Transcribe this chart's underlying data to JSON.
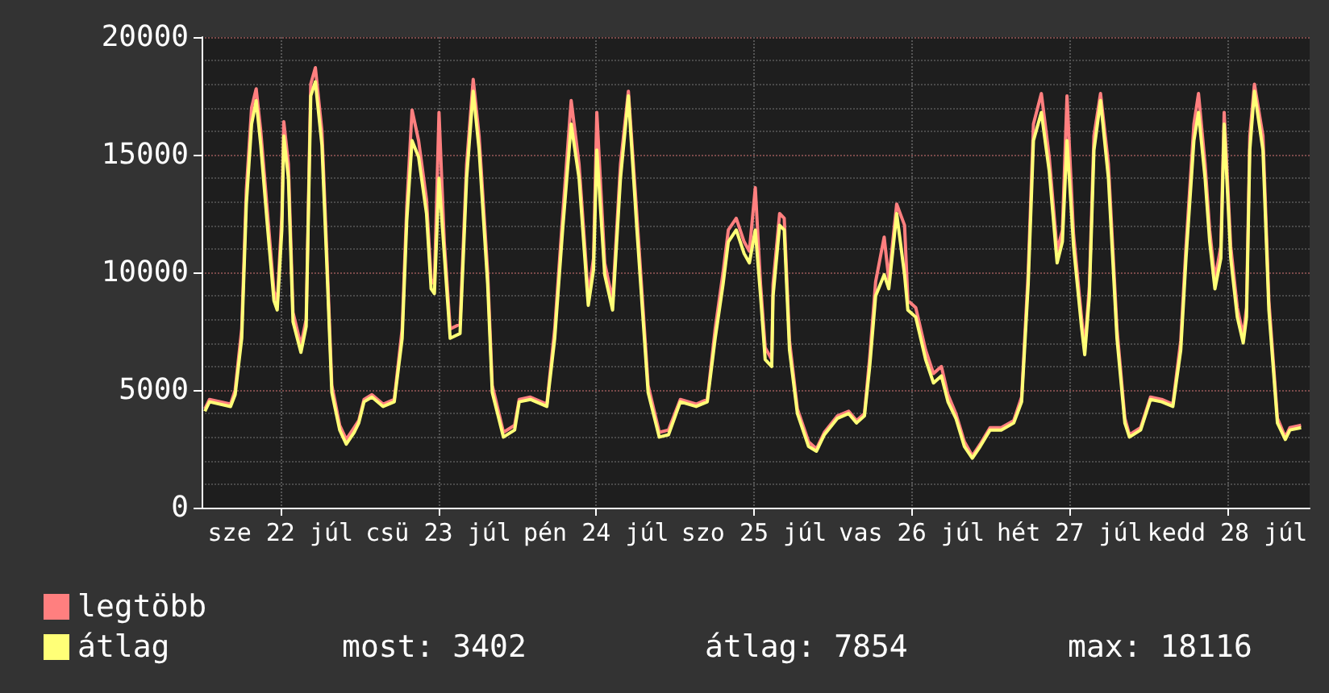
{
  "chart_data": {
    "type": "line",
    "x": [
      "--07-22T00:30",
      "--07-22T01:12",
      "--07-22T04:24",
      "--07-22T05:06",
      "--07-22T06:06",
      "--07-22T06:48",
      "--07-22T07:36",
      "--07-22T08:18",
      "--07-22T09:00",
      "--07-22T10:00",
      "--07-22T11:00",
      "--07-22T11:30",
      "--07-22T12:12",
      "--07-22T12:30",
      "--07-22T13:12",
      "--07-22T13:54",
      "--07-22T15:06",
      "--07-22T15:54",
      "--07-22T16:36",
      "--07-22T17:18",
      "--07-22T18:18",
      "--07-22T19:00",
      "--07-22T19:48",
      "--07-22T21:00",
      "--07-22T22:00",
      "--07-22T23:12",
      "--07-22T23:54",
      "--07-23T00:42",
      "--07-23T01:54",
      "--07-23T03:36",
      "--07-23T05:18",
      "--07-23T06:30",
      "--07-23T07:12",
      "--07-23T08:00",
      "--07-23T09:00",
      "--07-23T10:12",
      "--07-23T10:54",
      "--07-23T11:24",
      "--07-23T12:06",
      "--07-23T12:54",
      "--07-23T13:48",
      "--07-23T15:18",
      "--07-23T16:18",
      "--07-23T17:18",
      "--07-23T18:12",
      "--07-23T19:30",
      "--07-23T20:12",
      "--07-23T21:54",
      "--07-23T23:36",
      "--07-24T00:18",
      "--07-24T02:00",
      "--07-24T04:30",
      "--07-24T05:42",
      "--07-24T06:54",
      "--07-24T08:12",
      "--07-24T09:24",
      "--07-24T10:48",
      "--07-24T11:36",
      "--07-24T12:06",
      "--07-24T13:18",
      "--07-24T14:30",
      "--07-24T15:42",
      "--07-24T16:54",
      "--07-24T18:12",
      "--07-24T19:54",
      "--07-24T21:36",
      "--07-24T23:00",
      "--07-25T00:48",
      "--07-25T03:12",
      "--07-25T04:54",
      "--07-25T06:06",
      "--07-25T07:18",
      "--07-25T08:06",
      "--07-25T09:18",
      "--07-25T10:30",
      "--07-25T11:18",
      "--07-25T12:12",
      "--07-25T13:00",
      "--07-25T13:42",
      "--07-25T14:42",
      "--07-25T14:54",
      "--07-25T15:54",
      "--07-25T16:36",
      "--07-25T17:24",
      "--07-25T18:36",
      "--07-25T20:18",
      "--07-25T21:30",
      "--07-25T22:42",
      "--07-26T00:42",
      "--07-26T02:24",
      "--07-26T03:36",
      "--07-26T04:48",
      "--07-26T05:36",
      "--07-26T06:30",
      "--07-26T07:48",
      "--07-26T08:30",
      "--07-26T09:42",
      "--07-26T10:54",
      "--07-26T11:24",
      "--07-26T12:36",
      "--07-26T14:06",
      "--07-26T15:18",
      "--07-26T16:30",
      "--07-26T17:30",
      "--07-26T18:42",
      "--07-26T20:00",
      "--07-26T21:12",
      "--07-26T22:24",
      "--07-26T23:54",
      "--07-27T01:36",
      "--07-27T03:30",
      "--07-27T04:42",
      "--07-27T05:42",
      "--07-27T06:30",
      "--07-27T07:42",
      "--07-27T08:54",
      "--07-27T10:06",
      "--07-27T10:54",
      "--07-27T11:36",
      "--07-27T12:36",
      "--07-27T13:48",
      "--07-27T14:18",
      "--07-27T15:00",
      "--07-27T15:42",
      "--07-27T16:42",
      "--07-27T17:54",
      "--07-27T19:12",
      "--07-27T20:24",
      "--07-27T21:06",
      "--07-27T22:48",
      "--07-28T00:18",
      "--07-28T02:00",
      "--07-28T03:42",
      "--07-28T04:54",
      "--07-28T05:42",
      "--07-28T06:54",
      "--07-28T07:36",
      "--07-28T08:36",
      "--07-28T09:18",
      "--07-28T10:06",
      "--07-28T11:00",
      "--07-28T11:30",
      "--07-28T12:30",
      "--07-28T13:30",
      "--07-28T14:24",
      "--07-28T14:54",
      "--07-28T15:24",
      "--07-28T16:06",
      "--07-28T17:24",
      "--07-28T18:18",
      "--07-28T19:36",
      "--07-28T20:48",
      "--07-28T21:30",
      "--07-28T23:12"
    ],
    "series": [
      {
        "name": "legtöbb",
        "color": "#ff7f7f",
        "values": [
          4200,
          4600,
          4400,
          5000,
          7600,
          13500,
          17000,
          17800,
          16000,
          12600,
          9200,
          8700,
          12400,
          16400,
          14600,
          8300,
          6900,
          8000,
          18000,
          18700,
          16000,
          11100,
          5200,
          3500,
          2900,
          3400,
          3700,
          4600,
          4800,
          4400,
          4600,
          7600,
          12800,
          16900,
          15600,
          13100,
          9700,
          9500,
          16800,
          11300,
          7600,
          7800,
          14600,
          18200,
          15800,
          10000,
          5200,
          3200,
          3500,
          4600,
          4700,
          4400,
          7600,
          12400,
          17300,
          14600,
          9000,
          10600,
          16800,
          10400,
          8800,
          14600,
          17700,
          12400,
          5200,
          3200,
          3300,
          4600,
          4400,
          4600,
          7600,
          10000,
          11800,
          12300,
          11300,
          10900,
          13600,
          9500,
          6800,
          6300,
          9500,
          12500,
          12300,
          7100,
          4200,
          2800,
          2500,
          3200,
          3900,
          4100,
          3700,
          4000,
          6400,
          9600,
          11500,
          9700,
          12900,
          12000,
          8800,
          8500,
          6700,
          5700,
          6000,
          4800,
          4000,
          2800,
          2200,
          2700,
          3400,
          3400,
          3700,
          4700,
          10000,
          16300,
          17600,
          14900,
          10900,
          11800,
          17500,
          11600,
          8100,
          6800,
          9400,
          15800,
          17600,
          14600,
          7600,
          3800,
          3100,
          3400,
          4700,
          4600,
          4400,
          7100,
          11100,
          16300,
          17600,
          14600,
          11800,
          9700,
          11100,
          16800,
          11100,
          8500,
          7300,
          8500,
          15800,
          18000,
          15800,
          8800,
          3800,
          3000,
          3400,
          3500
        ]
      },
      {
        "name": "átlag",
        "color": "#ffff77",
        "values": [
          4100,
          4500,
          4300,
          4800,
          7200,
          12900,
          16300,
          17300,
          15400,
          12000,
          8800,
          8400,
          11800,
          15800,
          14000,
          7900,
          6600,
          7700,
          17500,
          18100,
          15400,
          10600,
          4900,
          3300,
          2700,
          3200,
          3600,
          4500,
          4700,
          4300,
          4500,
          7200,
          12200,
          15600,
          14900,
          12500,
          9300,
          9100,
          14000,
          10800,
          7200,
          7400,
          14000,
          17700,
          15200,
          9500,
          4900,
          3000,
          3300,
          4500,
          4600,
          4300,
          7200,
          11800,
          16300,
          14000,
          8600,
          10100,
          15200,
          9900,
          8400,
          14000,
          17500,
          11800,
          4900,
          3000,
          3100,
          4500,
          4300,
          4500,
          7200,
          9500,
          11300,
          11800,
          10800,
          10400,
          11800,
          9000,
          6300,
          6000,
          9000,
          12000,
          11800,
          6700,
          4000,
          2600,
          2400,
          3100,
          3800,
          4000,
          3600,
          3900,
          6000,
          9000,
          9900,
          9300,
          12500,
          9900,
          8400,
          8100,
          6300,
          5300,
          5600,
          4500,
          3800,
          2600,
          2100,
          2600,
          3300,
          3300,
          3600,
          4500,
          9500,
          15600,
          16800,
          14300,
          10400,
          11300,
          15600,
          11100,
          7700,
          6500,
          9000,
          15200,
          17300,
          14000,
          7200,
          3600,
          3000,
          3300,
          4600,
          4500,
          4300,
          6700,
          10600,
          15600,
          16800,
          14000,
          11300,
          9300,
          10600,
          16300,
          10600,
          8100,
          7000,
          8100,
          15200,
          17700,
          15200,
          8400,
          3600,
          2900,
          3300,
          3400
        ]
      }
    ],
    "xlim": [
      "--07-22T00:00",
      "--07-29T00:30"
    ],
    "xticks": [
      {
        "value": "--07-22T12:00",
        "label": "sze 22 júl"
      },
      {
        "value": "--07-23T12:00",
        "label": "csü 23 júl"
      },
      {
        "value": "--07-24T12:00",
        "label": "pén 24 júl"
      },
      {
        "value": "--07-25T12:00",
        "label": "szo 25 júl"
      },
      {
        "value": "--07-26T12:00",
        "label": "vas 26 júl"
      },
      {
        "value": "--07-27T12:00",
        "label": "hét 27 júl"
      },
      {
        "value": "--07-28T12:00",
        "label": "kedd 28 júl"
      }
    ],
    "ylim": [
      0,
      20000
    ],
    "yticks": [
      0,
      5000,
      10000,
      15000,
      20000
    ],
    "grid": true,
    "legend": "bottom left",
    "marker": "none",
    "line_style": "solid",
    "annotations": [
      "most: 3402",
      "átlag: 7854",
      "max: 18116"
    ]
  }
}
